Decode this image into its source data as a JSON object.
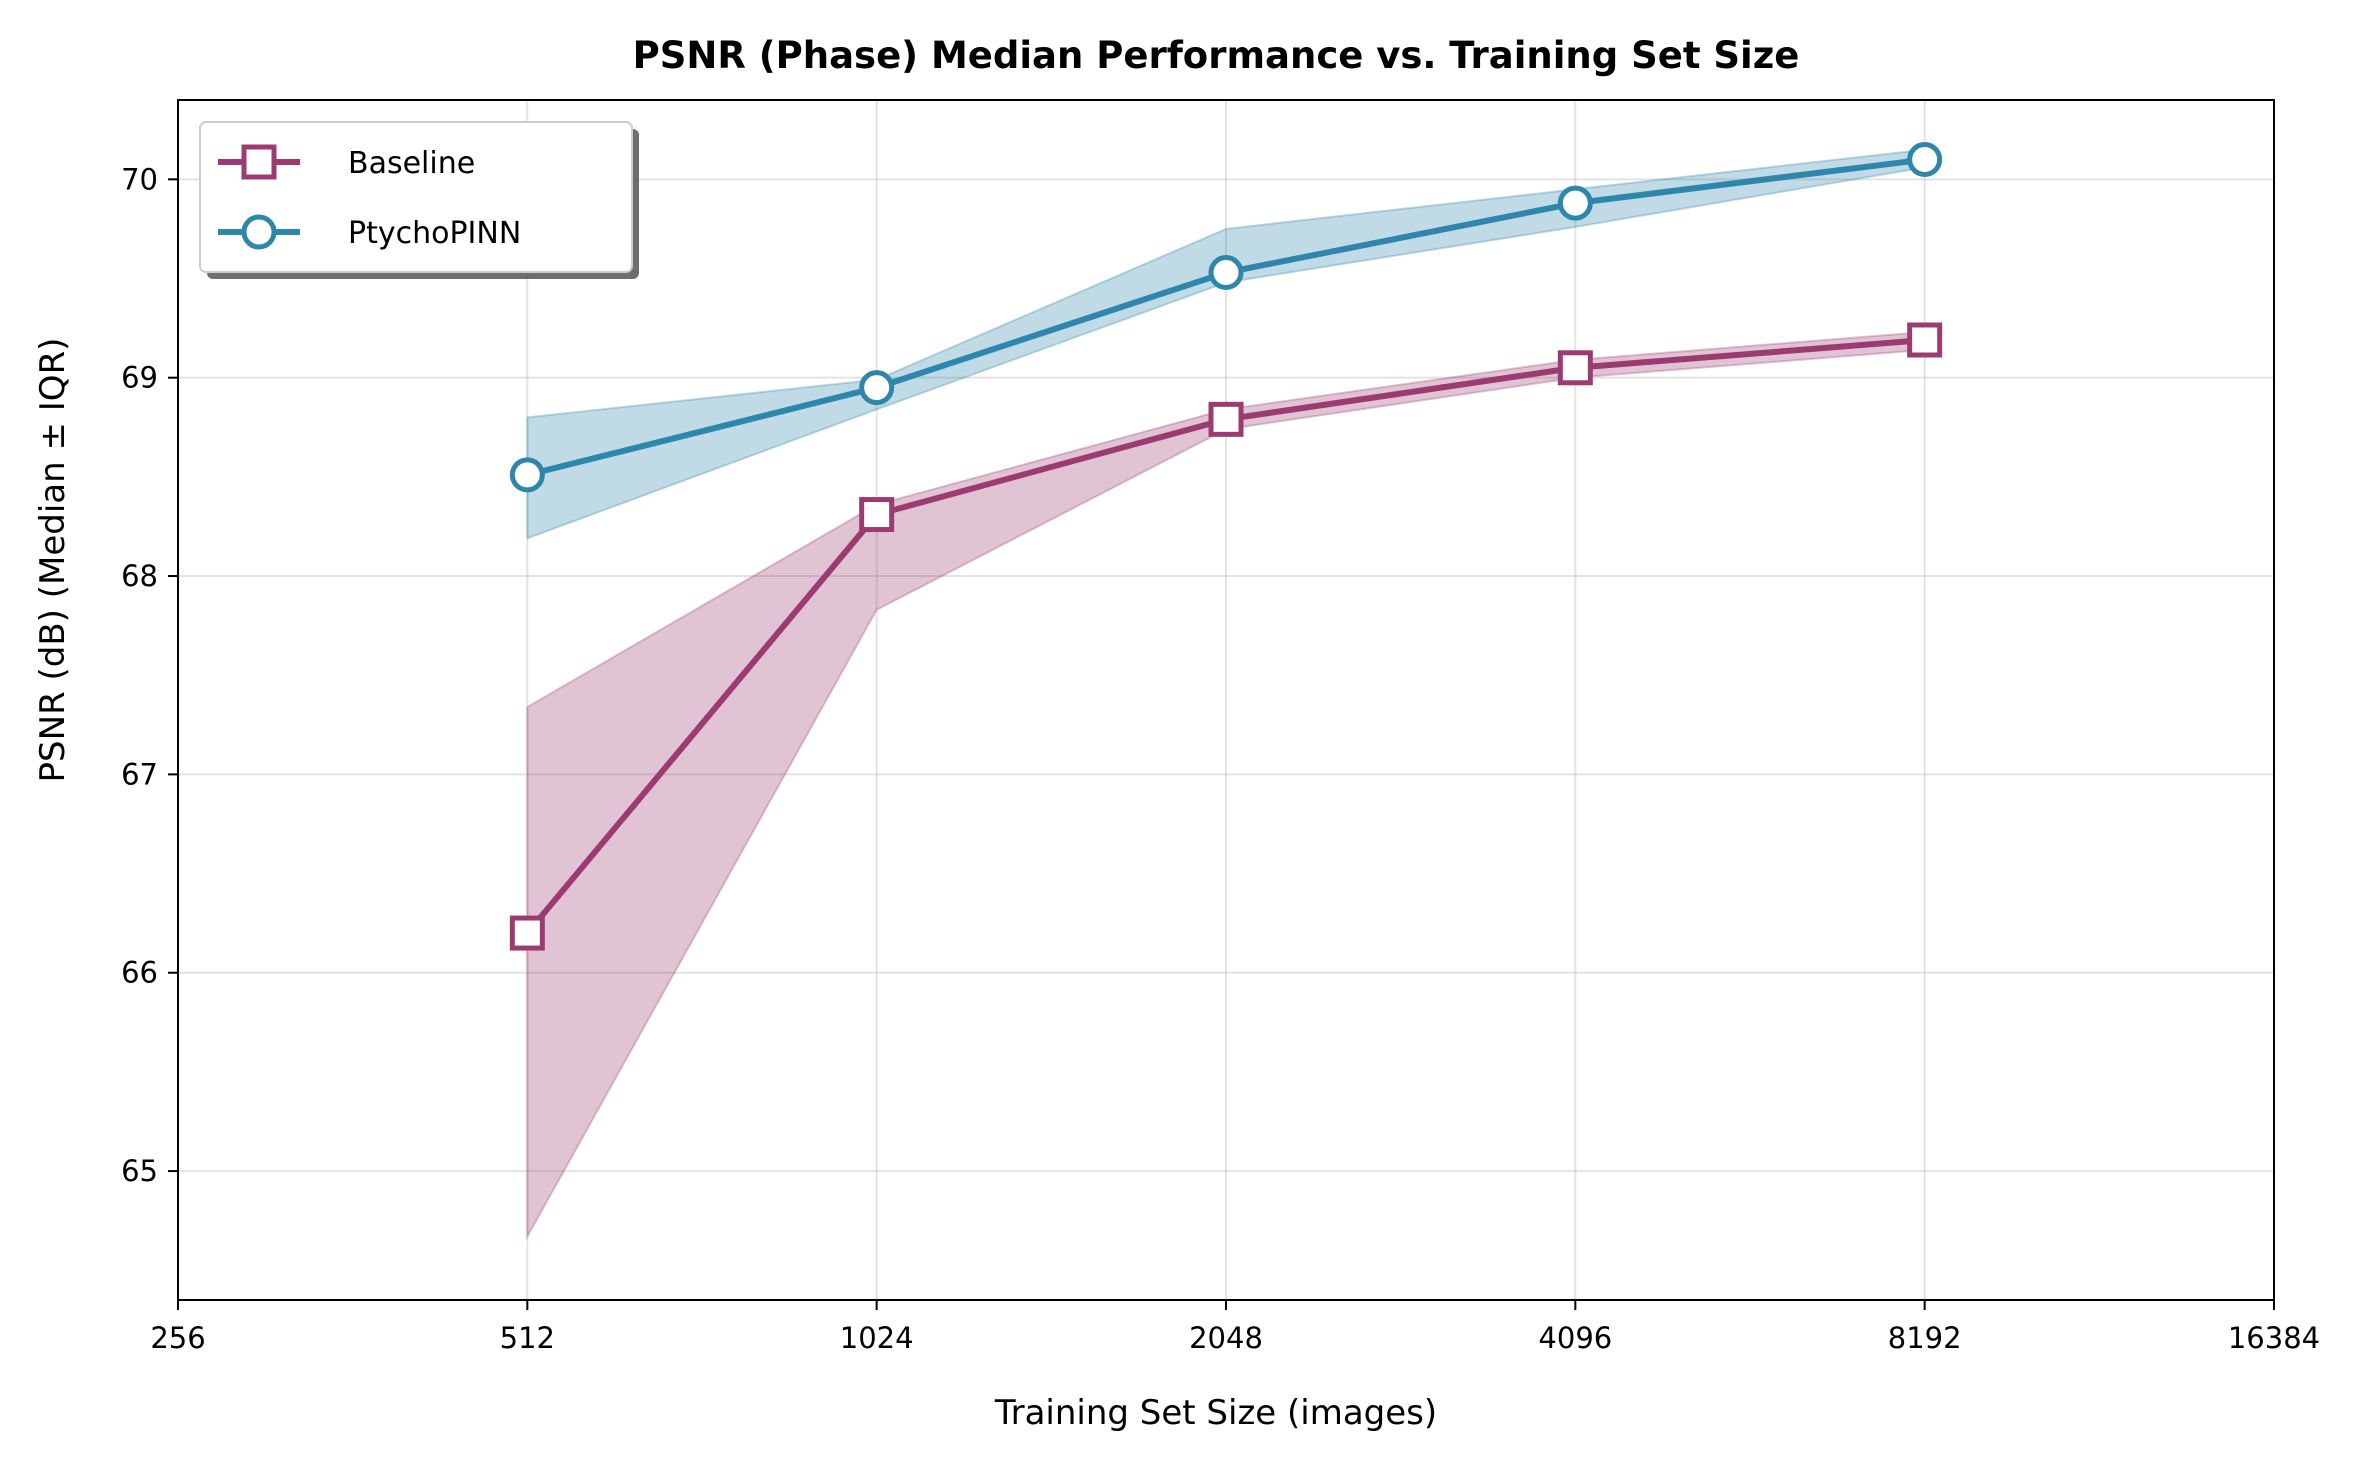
{
  "chart_data": {
    "type": "line",
    "title": "PSNR (Phase) Median Performance vs. Training Set Size",
    "xlabel": "Training Set Size (images)",
    "ylabel": "PSNR (dB) (Median ± IQR)",
    "xscale": "log2",
    "xlim": [
      256,
      16384
    ],
    "ylim": [
      64.35,
      70.4
    ],
    "xticks": [
      "256",
      "512",
      "1024",
      "2048",
      "4096",
      "8192",
      "16384"
    ],
    "yticks": [
      "65",
      "66",
      "67",
      "68",
      "69",
      "70"
    ],
    "grid": true,
    "legend_position": "top-left",
    "x": [
      512,
      1024,
      2048,
      4096,
      8192
    ],
    "series": [
      {
        "name": "Baseline",
        "marker": "square",
        "color": "#9c3b72",
        "values": [
          66.2,
          68.31,
          68.79,
          69.05,
          69.19
        ],
        "iqr_low": [
          64.67,
          67.83,
          68.74,
          69.0,
          69.14
        ],
        "iqr_high": [
          67.34,
          68.36,
          68.84,
          69.09,
          69.23
        ]
      },
      {
        "name": "PtychoPINN",
        "marker": "circle",
        "color": "#2e86ab",
        "values": [
          68.51,
          68.95,
          69.53,
          69.88,
          70.1
        ],
        "iqr_low": [
          68.19,
          68.84,
          69.48,
          69.76,
          70.06
        ],
        "iqr_high": [
          68.8,
          68.99,
          69.75,
          69.95,
          70.15
        ]
      }
    ]
  }
}
